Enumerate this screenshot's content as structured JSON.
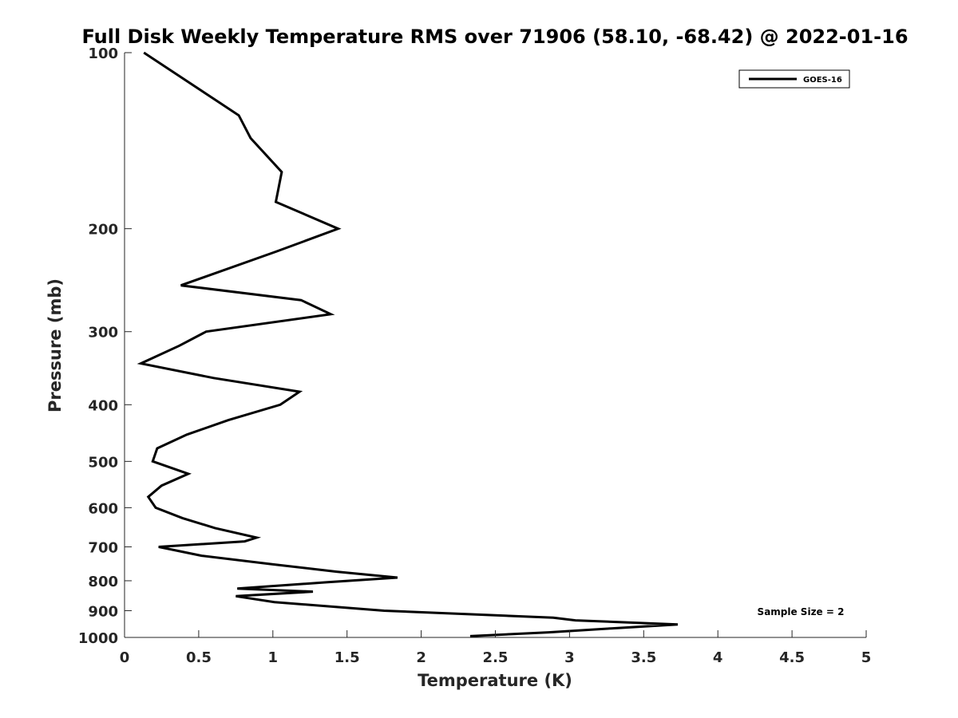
{
  "chart_data": {
    "type": "line",
    "title": "Full Disk Weekly Temperature RMS over 71906 (58.10, -68.42) @ 2022-01-16",
    "xlabel": "Temperature (K)",
    "ylabel": "Pressure (mb)",
    "xlim": [
      0,
      5
    ],
    "ylim": [
      100,
      1000
    ],
    "y_scale": "log",
    "y_reversed": true,
    "grid": false,
    "legend_position": "top-right",
    "x_ticks": [
      "0",
      "0.5",
      "1",
      "1.5",
      "2",
      "2.5",
      "3",
      "3.5",
      "4",
      "4.5",
      "5"
    ],
    "y_ticks": [
      "100",
      "200",
      "300",
      "400",
      "500",
      "600",
      "700",
      "800",
      "900",
      "1000"
    ],
    "annotation": "Sample Size = 2",
    "series": [
      {
        "name": "GOES-16",
        "color": "#000000",
        "points": [
          [
            0.13,
            100
          ],
          [
            0.77,
            128
          ],
          [
            0.85,
            140
          ],
          [
            1.06,
            160
          ],
          [
            1.02,
            180
          ],
          [
            1.44,
            200
          ],
          [
            1.02,
            219
          ],
          [
            0.38,
            250
          ],
          [
            1.19,
            265
          ],
          [
            1.39,
            280
          ],
          [
            0.55,
            300
          ],
          [
            0.37,
            317
          ],
          [
            0.11,
            340
          ],
          [
            0.6,
            360
          ],
          [
            1.18,
            380
          ],
          [
            1.05,
            400
          ],
          [
            0.7,
            425
          ],
          [
            0.42,
            450
          ],
          [
            0.22,
            475
          ],
          [
            0.19,
            500
          ],
          [
            0.43,
            525
          ],
          [
            0.25,
            550
          ],
          [
            0.16,
            575
          ],
          [
            0.21,
            600
          ],
          [
            0.39,
            625
          ],
          [
            0.61,
            650
          ],
          [
            0.89,
            675
          ],
          [
            0.81,
            685
          ],
          [
            0.23,
            700
          ],
          [
            0.52,
            725
          ],
          [
            1.0,
            750
          ],
          [
            1.43,
            772
          ],
          [
            1.84,
            790
          ],
          [
            1.36,
            805
          ],
          [
            0.76,
            825
          ],
          [
            1.27,
            835
          ],
          [
            0.75,
            850
          ],
          [
            1.01,
            870
          ],
          [
            1.75,
            900
          ],
          [
            2.89,
            925
          ],
          [
            3.04,
            935
          ],
          [
            3.73,
            950
          ],
          [
            3.28,
            965
          ],
          [
            2.86,
            980
          ],
          [
            2.33,
            995
          ]
        ]
      }
    ]
  }
}
